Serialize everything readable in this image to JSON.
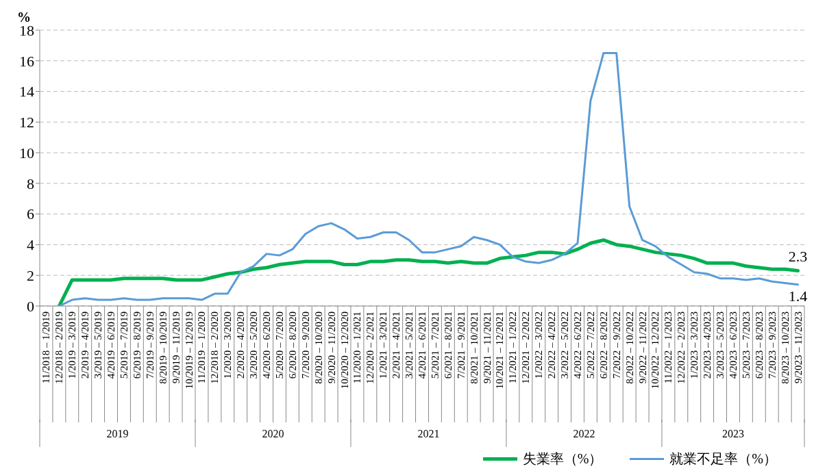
{
  "chart_data": {
    "type": "line",
    "ylabel": "%",
    "categories": [
      "11/2018 – 1/2019",
      "12/2018 – 2/2019",
      "1/2019 – 3/2019",
      "2/2019 – 4/2019",
      "3/2019 – 5/2019",
      "4/2019 – 6/2019",
      "5/2019 – 7/2019",
      "6/2019 – 8/2019",
      "7/2019 – 9/2019",
      "8/2019 – 10/2019",
      "9/2019 – 11/2019",
      "10/2019 – 12/2019",
      "11/2019 – 1/2020",
      "12/2018 – 2/2020",
      "1/2020 – 3/2020",
      "2/2020 – 4/2020",
      "3/2020 – 5/2020",
      "4/2020 – 6/2020",
      "5/2020 – 7/2020",
      "6/2020 – 8/2020",
      "7/2020 – 9/2020",
      "8/2020 – 10/2020",
      "9/2020 – 11/2020",
      "10/2020 – 12/2020",
      "11/2020 – 1/2021",
      "12/2020 – 2/2021",
      "1/2021 – 3/2021",
      "2/2021 – 4/2021",
      "3/2021 – 5/2021",
      "4/2021 – 6/2021",
      "5/2021 – 7/2021",
      "6/2021 – 8/2021",
      "7/2021 – 9/2021",
      "8/2021 – 10/2021",
      "9/2021 – 11/2021",
      "10/2021 – 12/2021",
      "11/2021 – 1/2022",
      "12/2021 – 2/2022",
      "1/2022 – 3/2022",
      "2/2022 – 4/2022",
      "3/2022 – 5/2022",
      "4/2022 – 6/2022",
      "5/2022 – 7/2022",
      "6/2022 – 8/2022",
      "7/2022 – 9/2022",
      "8/2022 – 10/2022",
      "9/2022 – 11/2022",
      "10/2022 – 12/2022",
      "11/2022 – 1/2023",
      "12/2022 – 2/2023",
      "1/2023 – 3/2023",
      "2/2023 – 4/2023",
      "3/2023 – 5/2023",
      "4/2023 – 6/2023",
      "5/2023 – 7/2023",
      "6/2023 – 8/2023",
      "7/2023 – 9/2023",
      "8/2023 – 10/2023",
      "9/2023 – 11/2023"
    ],
    "series": [
      {
        "name": "失業率（%）",
        "color": "#00b050",
        "values": [
          null,
          0,
          1.7,
          1.7,
          1.7,
          1.7,
          1.8,
          1.8,
          1.8,
          1.8,
          1.7,
          1.7,
          1.7,
          1.9,
          2.1,
          2.2,
          2.4,
          2.5,
          2.7,
          2.8,
          2.9,
          2.9,
          2.9,
          2.7,
          2.7,
          2.9,
          2.9,
          3.0,
          3.0,
          2.9,
          2.9,
          2.8,
          2.9,
          2.8,
          2.8,
          3.1,
          3.2,
          3.3,
          3.5,
          3.5,
          3.4,
          3.7,
          4.1,
          4.3,
          4.0,
          3.9,
          3.7,
          3.5,
          3.4,
          3.3,
          3.1,
          2.8,
          2.8,
          2.8,
          2.6,
          2.5,
          2.4,
          2.4,
          2.3
        ],
        "value_labels": [
          null,
          null,
          null,
          null,
          null,
          null,
          null,
          null,
          null,
          null,
          null,
          null,
          null,
          null,
          null,
          null,
          null,
          null,
          null,
          null,
          null,
          null,
          null,
          null,
          null,
          null,
          null,
          null,
          null,
          null,
          null,
          null,
          null,
          null,
          null,
          null,
          null,
          null,
          null,
          null,
          null,
          null,
          null,
          null,
          null,
          null,
          null,
          null,
          null,
          null,
          null,
          null,
          null,
          null,
          null,
          null,
          null,
          null,
          "2.3"
        ]
      },
      {
        "name": "就業不足率（%）",
        "color": "#5b9bd5",
        "values": [
          null,
          0,
          0.4,
          0.5,
          0.4,
          0.4,
          0.5,
          0.4,
          0.4,
          0.5,
          0.5,
          0.5,
          0.4,
          0.8,
          0.8,
          2.2,
          2.6,
          3.4,
          3.3,
          3.7,
          4.7,
          5.2,
          5.4,
          5.0,
          4.4,
          4.5,
          4.8,
          4.8,
          4.3,
          3.5,
          3.5,
          3.7,
          3.9,
          4.5,
          4.3,
          4.0,
          3.2,
          2.9,
          2.8,
          3.0,
          3.4,
          4.1,
          13.4,
          16.5,
          16.5,
          6.5,
          4.3,
          3.9,
          3.2,
          2.7,
          2.2,
          2.1,
          1.8,
          1.8,
          1.7,
          1.8,
          1.6,
          1.5,
          1.4
        ],
        "value_labels": [
          null,
          null,
          null,
          null,
          null,
          null,
          null,
          null,
          null,
          null,
          null,
          null,
          null,
          null,
          null,
          null,
          null,
          null,
          null,
          null,
          null,
          null,
          null,
          null,
          null,
          null,
          null,
          null,
          null,
          null,
          null,
          null,
          null,
          null,
          null,
          null,
          null,
          null,
          null,
          null,
          null,
          null,
          null,
          null,
          null,
          null,
          null,
          null,
          null,
          null,
          null,
          null,
          null,
          null,
          null,
          null,
          null,
          null,
          "1.4"
        ]
      }
    ],
    "ylim": [
      0,
      18
    ],
    "yticks": [
      0,
      2,
      4,
      6,
      8,
      10,
      12,
      14,
      16,
      18
    ],
    "annotations": [
      "2019",
      "2020",
      "2021",
      "2022",
      "2023"
    ],
    "grid": "y",
    "legend": "bottom right",
    "marker": "none",
    "line_style": "solid"
  }
}
